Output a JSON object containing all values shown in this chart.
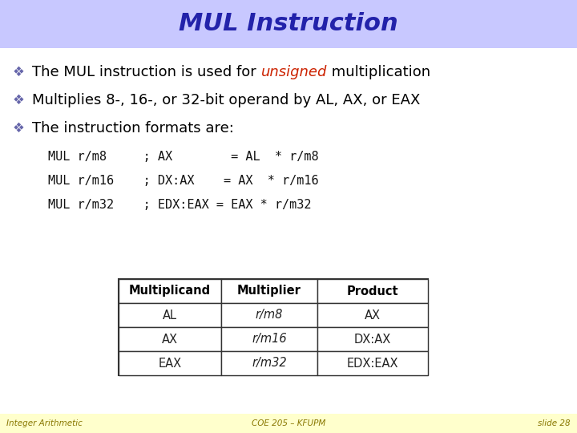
{
  "title": "MUL Instruction",
  "title_color": "#2222AA",
  "title_bg": "#C8C8FF",
  "bg_color": "#FFFFFF",
  "footer_bg": "#FFFFCC",
  "footer_left": "Integer Arithmetic",
  "footer_center": "COE 205 – KFUPM",
  "footer_right": "slide 28",
  "bullet_color": "#000000",
  "unsigned_color": "#CC2200",
  "code_lines": [
    [
      "MUL r/m8",
      "  ; AX        = AL  * r/m8"
    ],
    [
      "MUL r/m16",
      " ; DX:AX    = AX  * r/m16"
    ],
    [
      "MUL r/m32",
      " ; EDX:EAX = EAX * r/m32"
    ]
  ],
  "table_headers": [
    "Multiplicand",
    "Multiplier",
    "Product"
  ],
  "table_rows": [
    [
      "AL",
      "r/m8",
      "AX"
    ],
    [
      "AX",
      "r/m16",
      "DX:AX"
    ],
    [
      "EAX",
      "r/m32",
      "EDX:EAX"
    ]
  ],
  "table_bg": "#FFFFFF",
  "title_fontsize": 22,
  "bullet_fontsize": 13,
  "code_fontsize": 11,
  "table_fontsize": 10.5
}
